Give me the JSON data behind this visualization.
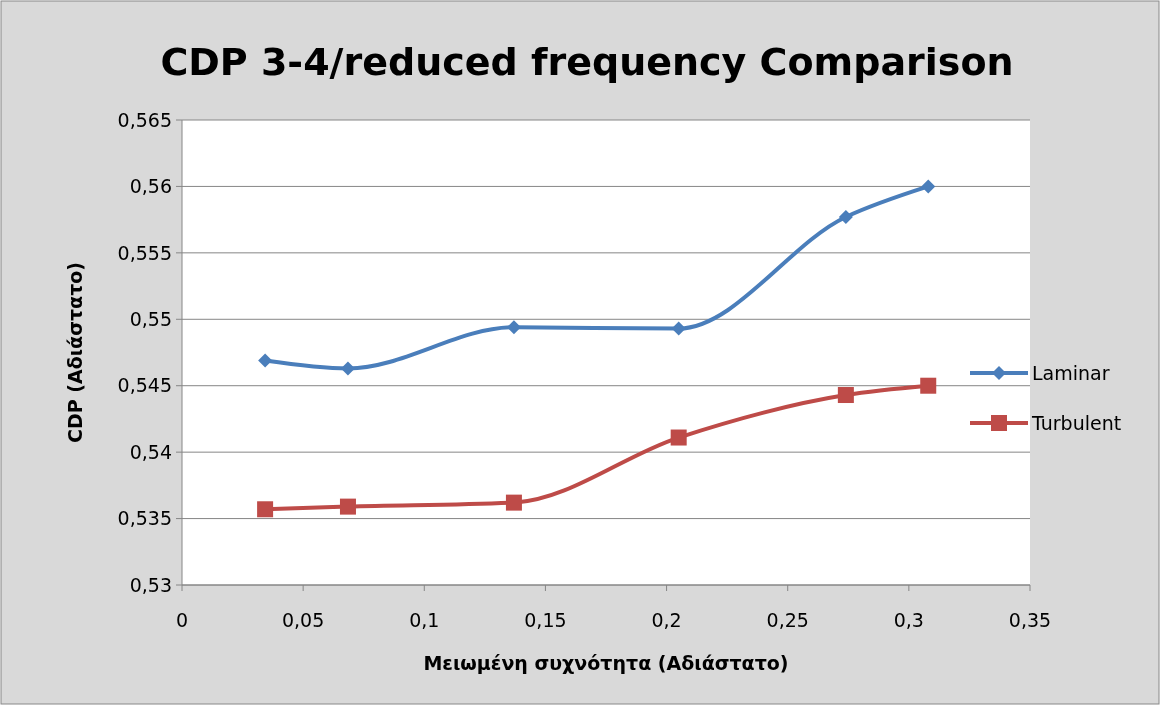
{
  "chart_data": {
    "type": "line",
    "title": "CDP 3-4/reduced frequency Comparison",
    "xlabel": "Μειωμένη συχνότητα (Αδιάστατο)",
    "ylabel": "CDP (Αδιάστατο)",
    "x": [
      0.0343,
      0.0685,
      0.137,
      0.205,
      0.274,
      0.308
    ],
    "series": [
      {
        "name": "Laminar",
        "color": "#4a7ebb",
        "marker": "diamond",
        "values": [
          0.5469,
          0.5463,
          0.5494,
          0.5493,
          0.5577,
          0.56
        ]
      },
      {
        "name": "Turbulent",
        "color": "#be4b48",
        "marker": "square",
        "values": [
          0.5357,
          0.5359,
          0.5362,
          0.5411,
          0.5443,
          0.545
        ]
      }
    ],
    "xlim": [
      0,
      0.35
    ],
    "xticks": [
      0,
      {
        "value": 0.05,
        "label": "0,05"
      },
      {
        "value": 0.1,
        "label": "0,1"
      },
      {
        "value": 0.15,
        "label": "0,15"
      },
      {
        "value": 0.2,
        "label": "0,2"
      },
      {
        "value": 0.25,
        "label": "0,25"
      },
      {
        "value": 0.3,
        "label": "0,3"
      },
      {
        "value": 0.35,
        "label": "0,35"
      }
    ],
    "ylim": [
      0.53,
      0.565
    ],
    "yticks": [
      {
        "value": 0.53,
        "label": "0,53"
      },
      {
        "value": 0.535,
        "label": "0,535"
      },
      {
        "value": 0.54,
        "label": "0,54"
      },
      {
        "value": 0.545,
        "label": "0,545"
      },
      {
        "value": 0.55,
        "label": "0,55"
      },
      {
        "value": 0.555,
        "label": "0,555"
      },
      {
        "value": 0.56,
        "label": "0,56"
      },
      {
        "value": 0.565,
        "label": "0,565"
      }
    ],
    "grid": "y",
    "legend": "right",
    "line_style": "solid"
  }
}
